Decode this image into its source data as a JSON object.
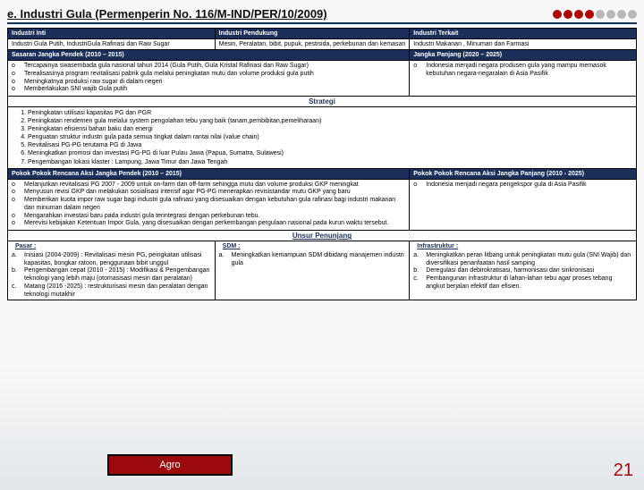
{
  "title": "e. Industri Gula (Permenperin No. 116/M-IND/PER/10/2009)",
  "dot_colors": [
    "#b00000",
    "#b00000",
    "#b00000",
    "#b00000",
    "#b8b8b8",
    "#b8b8b8",
    "#b8b8b8",
    "#b8b8b8"
  ],
  "hdr": {
    "inti": "Industri Inti",
    "pendukung": "Industri Pendukung",
    "terkait": "Industri Terkait"
  },
  "sub": {
    "inti": "Industri Gula Putih, IndustriGula Rafinasi dan Raw Sugar",
    "pendukung": "Mesin, Peralatan, bibit, pupuk, pestisida, perkebunan dan kemasan",
    "terkait": "Industri Makanan , Minuman dan Farmasi"
  },
  "sasaran": {
    "pendek": "Sasaran Jangka Pendek (2010 – 2015)",
    "panjang": "Jangka Panjang (2020 – 2025)"
  },
  "sasaran_pendek_items": [
    "Tercapainya swasembada gula nasional tahun 2014 (Gula Putih, Gula Kristal Rafinasi dan Raw Sugar)",
    "Terealisasinya program revitalisasi pabrik gula melalui peningkatan mutu dan volume produksi gula putih",
    "Meningkatnya produksi raw sugar di dalam negeri",
    "Memberlakukan SNI wajib Gula putih"
  ],
  "sasaran_panjang_items": [
    "Indonesia menjadi negara produsen gula yang mampu memasok kebutuhan negara-negaralain di Asia Pasifik"
  ],
  "strategi_label": "Strategi",
  "strategi": [
    "Peningkatan utilisasi kapasitas PG dan PGR",
    "Peningkatan rendemen gula melalui system pengolahan tebu yang baik (tanam,pembibitan,pemeliharaan)",
    "Peningkatan efisiensi bahan baku dan energi",
    "Penguatan struktur industri gula pada semua tingkat dalam rantai nilai (value chain)",
    "Revitalisasi PG-PG terutama PG di Jawa",
    "Meningkatkan promosi dan investasi PG-PG di luar Pulau Jawa (Papua, Sumatra, Sulawesi)",
    "Pengembangan lokasi klaster : Lampung, Jawa Timur dan Jawa Tengah"
  ],
  "pokok": {
    "pendek_hdr": "Pokok Pokok Rencana Aksi Jangka Pendek  (2010 – 2015)",
    "panjang_hdr": "Pokok Pokok Rencana Aksi Jangka Panjang  (2010 - 2025)"
  },
  "pokok_pendek_items": [
    "Melanjutkan revitalisasi PG 2007 - 2009 untuk on-farm dan off-farm sehingga mutu dan volume  produksi GKP meningkat",
    "Menyusun revisi GKP dan melakukan sosialisasi intensif agar PG-PG menerapkan revisistandar mutu GKP yang baru",
    "Memberikan kuota impor raw sugar bagi industri gula rafinasi yang disesuaikan dengan kebutuhan gula rafinasi bagi industri makanan dan minuman dalam negeri",
    "Mengarahkan investasi baru pada industri gula terintegrasi dengan perkebunan tebu.",
    "Merevisi kebijakan Ketentuan Impor Gula, yang disesuaikan dengan perkembangan pergulaan nasional pada kurun waktu tersebut."
  ],
  "pokok_panjang_items": [
    "Indonesia menjadi negara pengekspor gula di Asia Pasifik"
  ],
  "unsur_label": "Unsur Penunjang",
  "footer": {
    "pasar": "Pasar :",
    "sdm": "SDM :",
    "infra": "Infrastruktur :"
  },
  "pasar_items": [
    {
      "lbl": "a.",
      "txt": "Inisiasi (2004-2009) : Revitalisasi mesin PG, peingkatan utilisasi kapasitas, bongkar ratoon, penggunaan bibit unggul"
    },
    {
      "lbl": "b.",
      "txt": "Pengembangan cepat (2010 - 2015) : Modifikasi & Pengembangan teknologi yang lebih maju (otomasisasi mesin dan peralatan)"
    },
    {
      "lbl": "c.",
      "txt": "Matang (2016 -2025) : restrukturisasi mesin dan peralatan dengan teknologi mutakhir"
    }
  ],
  "sdm_items": [
    {
      "lbl": "a.",
      "txt": "Meningkatkan kemampuan SDM dibidang manajemen industri gula"
    }
  ],
  "infra_items": [
    {
      "lbl": "a.",
      "txt": "Meningkatkan peran litbang untuk peningkatan mutu gula (SNI Wajib) dan diversifikasi penanfaatan hasil samping"
    },
    {
      "lbl": "b.",
      "txt": "Deregulasi dan debirokratisasi, harmonisasi dan sinkronisasi"
    },
    {
      "lbl": "c.",
      "txt": "Pembangunan infrastruktur di lahan-lahan tebu agar proses tebang angkut berjalan efektif dan efisien."
    }
  ],
  "agro": "Agro",
  "page": "21",
  "col": {
    "w1": "33%",
    "w2a": "31%",
    "w2b": "36%"
  }
}
